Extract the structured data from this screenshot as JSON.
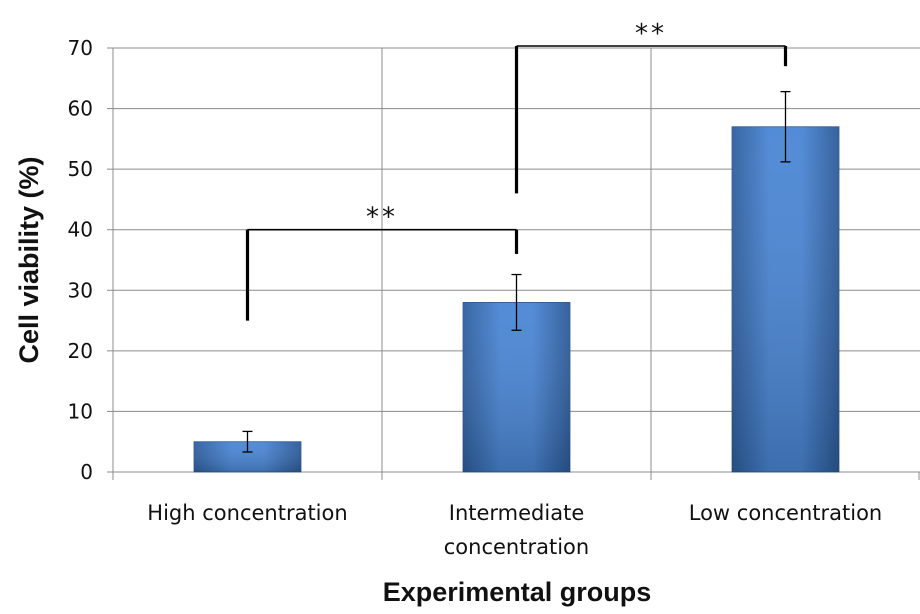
{
  "chart_data": {
    "type": "bar",
    "categories": [
      "High concentration",
      "Intermediate concentration",
      "Low concentration"
    ],
    "category_lines": [
      [
        "High concentration"
      ],
      [
        "Intermediate",
        "concentration"
      ],
      [
        "Low concentration"
      ]
    ],
    "values": [
      5,
      28,
      57
    ],
    "error": [
      1.7,
      4.6,
      5.8
    ],
    "xlabel": "Experimental groups",
    "ylabel": "Cell viability (%)",
    "ylim": [
      0,
      70
    ],
    "yticks": [
      0,
      10,
      20,
      30,
      40,
      50,
      60,
      70
    ],
    "grid": true,
    "bar_color": "#3f74bf",
    "significance": [
      {
        "from": 0,
        "to": 1,
        "label": "**",
        "y": 40,
        "from_bottom": 25,
        "to_bottom": 36
      },
      {
        "from": 1,
        "to": 2,
        "label": "**",
        "y": 70,
        "from_bottom": 46,
        "to_bottom": 67
      }
    ]
  }
}
